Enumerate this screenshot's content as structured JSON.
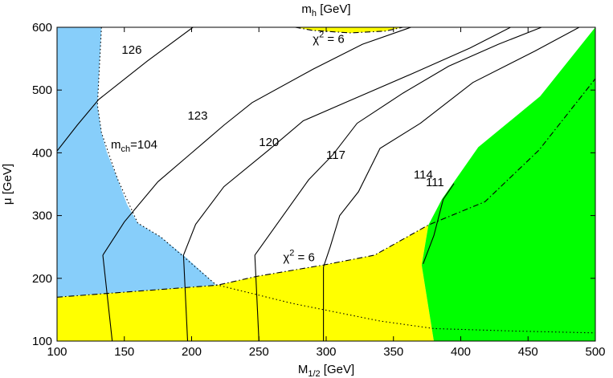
{
  "chart_data": {
    "type": "contour",
    "title": "m_h [GeV]",
    "xlabel": "M_1/2 [GeV]",
    "ylabel": "μ [GeV]",
    "xlim": [
      100,
      500
    ],
    "ylim": [
      100,
      600
    ],
    "xticks": [
      100,
      150,
      200,
      250,
      300,
      350,
      400,
      450,
      500
    ],
    "yticks": [
      100,
      200,
      300,
      400,
      500,
      600
    ],
    "grid": false,
    "colors": {
      "chargino_excluded": "#87cefa",
      "chi2_low_region": "#ffff00",
      "green_region": "#00ff00",
      "contour": "#000000"
    },
    "regions": [
      {
        "name": "chargino-excluded",
        "color": "#87cefa",
        "points": [
          [
            100,
            600
          ],
          [
            133,
            600
          ],
          [
            132,
            557
          ],
          [
            131,
            517
          ],
          [
            130,
            476
          ],
          [
            133,
            432
          ],
          [
            137,
            401
          ],
          [
            145,
            358
          ],
          [
            152,
            318
          ],
          [
            160,
            288
          ],
          [
            177,
            266
          ],
          [
            196,
            233
          ],
          [
            218,
            190
          ],
          [
            219,
            189
          ],
          [
            100,
            170
          ]
        ]
      },
      {
        "name": "chi2-yellow",
        "color": "#ffff00",
        "points": [
          [
            100,
            100
          ],
          [
            380,
            100
          ],
          [
            371,
            221
          ],
          [
            376,
            285
          ],
          [
            336,
            237
          ],
          [
            300,
            222
          ],
          [
            248,
            203
          ],
          [
            219,
            189
          ],
          [
            100,
            170
          ]
        ]
      },
      {
        "name": "chi2-yellow-top",
        "color": "#ffff00",
        "points": [
          [
            277,
            600
          ],
          [
            357,
            600
          ],
          [
            344,
            594
          ],
          [
            318,
            591
          ],
          [
            290,
            595
          ]
        ]
      },
      {
        "name": "green",
        "color": "#00ff00",
        "points": [
          [
            380,
            100
          ],
          [
            500,
            100
          ],
          [
            500,
            600
          ],
          [
            459,
            490
          ],
          [
            413,
            409
          ],
          [
            386,
            326
          ],
          [
            376,
            285
          ],
          [
            371,
            221
          ]
        ]
      }
    ],
    "contours": [
      {
        "level": "126",
        "points": [
          [
            100,
            403
          ],
          [
            115,
            444
          ],
          [
            131,
            485
          ],
          [
            167,
            546
          ],
          [
            201,
            600
          ]
        ]
      },
      {
        "level": "123",
        "points": [
          [
            134,
            237
          ],
          [
            150,
            290
          ],
          [
            175,
            354
          ],
          [
            199,
            398
          ],
          [
            224,
            444
          ],
          [
            245,
            480
          ],
          [
            290,
            533
          ],
          [
            327,
            573
          ],
          [
            363,
            600
          ]
        ]
      },
      {
        "level": "120",
        "points": [
          [
            194,
            237
          ],
          [
            203,
            286
          ],
          [
            224,
            346
          ],
          [
            257,
            404
          ],
          [
            283,
            451
          ],
          [
            326,
            491
          ],
          [
            366,
            528
          ],
          [
            407,
            567
          ],
          [
            437,
            600
          ]
        ]
      },
      {
        "level": "117",
        "points": [
          [
            247,
            237
          ],
          [
            263,
            285
          ],
          [
            287,
            357
          ],
          [
            305,
            397
          ],
          [
            323,
            447
          ],
          [
            357,
            495
          ],
          [
            391,
            538
          ],
          [
            428,
            573
          ],
          [
            460,
            600
          ]
        ]
      },
      {
        "level": "114",
        "points": [
          [
            298,
            218
          ],
          [
            303,
            250
          ],
          [
            310,
            300
          ],
          [
            324,
            338
          ],
          [
            340,
            407
          ],
          [
            370,
            447
          ],
          [
            409,
            512
          ],
          [
            455,
            562
          ],
          [
            488,
            600
          ]
        ]
      },
      {
        "level": "111",
        "points": [
          [
            372,
            223
          ],
          [
            380,
            268
          ],
          [
            387,
            326
          ],
          [
            395,
            351
          ]
        ]
      },
      {
        "name": "contour-123-lower",
        "points": [
          [
            134,
            237
          ],
          [
            141,
            100
          ]
        ]
      },
      {
        "name": "contour-120-lower",
        "points": [
          [
            194,
            237
          ],
          [
            197,
            100
          ]
        ]
      },
      {
        "name": "contour-117-lower",
        "points": [
          [
            247,
            237
          ],
          [
            250,
            100
          ]
        ]
      },
      {
        "name": "contour-114-lower",
        "points": [
          [
            298,
            218
          ],
          [
            298,
            100
          ]
        ]
      },
      {
        "name": "top-loop",
        "points": [
          [
            190,
            600
          ],
          [
            222,
            604
          ],
          [
            268,
            600
          ],
          [
            320,
            601
          ],
          [
            380,
            608
          ],
          [
            420,
            603
          ]
        ]
      }
    ],
    "boundaries": [
      {
        "name": "chi2-boundary-lower",
        "style": "dash-dot",
        "points": [
          [
            100,
            170
          ],
          [
            219,
            189
          ],
          [
            248,
            203
          ],
          [
            300,
            222
          ],
          [
            336,
            237
          ],
          [
            376,
            285
          ],
          [
            418,
            322
          ],
          [
            458,
            404
          ],
          [
            500,
            518
          ]
        ]
      },
      {
        "name": "chi2-boundary-upper",
        "style": "dash-dot",
        "points": [
          [
            277,
            600
          ],
          [
            290,
            595
          ],
          [
            318,
            591
          ],
          [
            344,
            594
          ],
          [
            357,
            600
          ]
        ]
      },
      {
        "name": "chargino-boundary",
        "style": "dotted",
        "points": [
          [
            133,
            600
          ],
          [
            131,
            517
          ],
          [
            130,
            476
          ],
          [
            133,
            432
          ],
          [
            145,
            358
          ],
          [
            160,
            288
          ],
          [
            177,
            266
          ],
          [
            218,
            190
          ],
          [
            275,
            160
          ],
          [
            340,
            132
          ],
          [
            380,
            120
          ],
          [
            440,
            116
          ],
          [
            500,
            113
          ]
        ]
      }
    ],
    "annotations": [
      {
        "text": "126",
        "x": 148,
        "y": 558
      },
      {
        "text": "123",
        "x": 197,
        "y": 453
      },
      {
        "text": "120",
        "x": 250,
        "y": 411
      },
      {
        "text": "117",
        "x": 300,
        "y": 390
      },
      {
        "text": "114",
        "x": 365,
        "y": 359
      },
      {
        "text": "111",
        "x": 374,
        "y": 347
      },
      {
        "text": "m_ch=104",
        "x": 140,
        "y": 407
      },
      {
        "text": "χ² = 6",
        "x": 290,
        "y": 575
      },
      {
        "text": "χ² = 6",
        "x": 268,
        "y": 227
      }
    ]
  }
}
